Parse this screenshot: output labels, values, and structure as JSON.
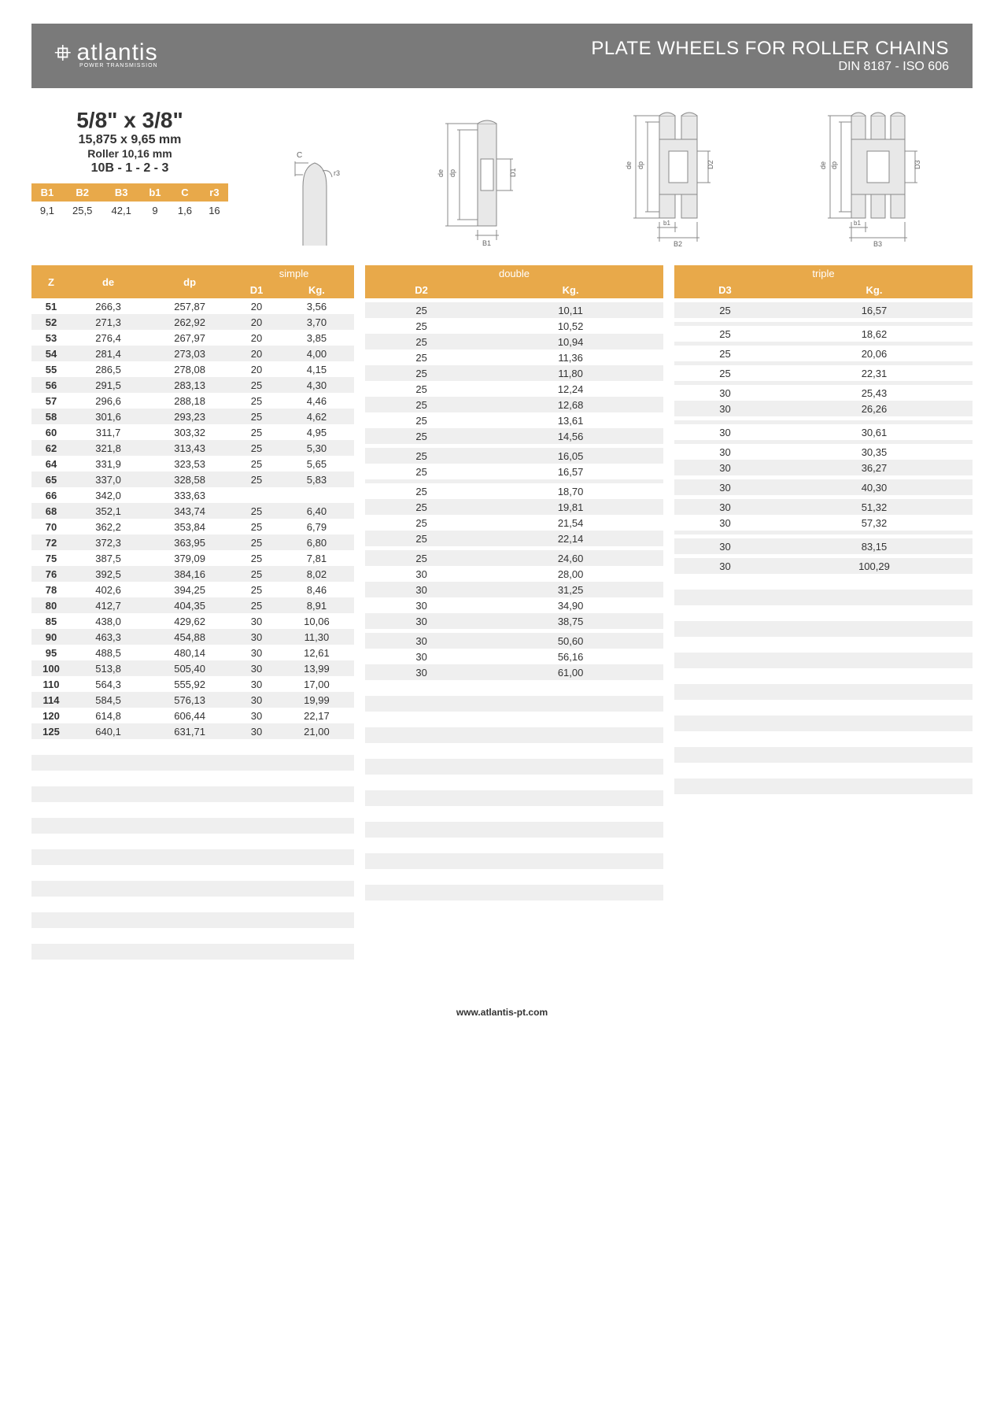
{
  "header": {
    "logo_text": "atlantis",
    "logo_sub": "POWER TRANSMISSION",
    "title": "PLATE WHEELS FOR ROLLER CHAINS",
    "subtitle": "DIN 8187 - ISO 606"
  },
  "spec": {
    "title": "5/8\" x 3/8\"",
    "sub1": "15,875 x 9,65 mm",
    "sub2": "Roller 10,16 mm",
    "sub3": "10B - 1 - 2 - 3",
    "param_headers": [
      "B1",
      "B2",
      "B3",
      "b1",
      "C",
      "r3"
    ],
    "param_values": [
      "9,1",
      "25,5",
      "42,1",
      "9",
      "1,6",
      "16"
    ]
  },
  "diagram_labels": {
    "c": "C",
    "r3": "r3",
    "de": "de",
    "dp": "dp",
    "d1": "D1",
    "d2": "D2",
    "d3": "D3",
    "b1": "B1",
    "b1l": "b1",
    "b2": "B2",
    "b3": "B3"
  },
  "table": {
    "left_headers": [
      "Z",
      "de",
      "dp"
    ],
    "groups": [
      {
        "name": "simple",
        "cols": [
          "D1",
          "Kg."
        ]
      },
      {
        "name": "double",
        "cols": [
          "D2",
          "Kg."
        ]
      },
      {
        "name": "triple",
        "cols": [
          "D3",
          "Kg."
        ]
      }
    ],
    "rows": [
      {
        "z": "51",
        "de": "266,3",
        "dp": "257,87",
        "s": [
          "20",
          "3,56"
        ],
        "d": [
          "",
          ""
        ],
        "t": [
          "",
          ""
        ]
      },
      {
        "z": "52",
        "de": "271,3",
        "dp": "262,92",
        "s": [
          "20",
          "3,70"
        ],
        "d": [
          "25",
          "10,11"
        ],
        "t": [
          "25",
          "16,57"
        ]
      },
      {
        "z": "53",
        "de": "276,4",
        "dp": "267,97",
        "s": [
          "20",
          "3,85"
        ],
        "d": [
          "25",
          "10,52"
        ],
        "t": [
          "",
          ""
        ]
      },
      {
        "z": "54",
        "de": "281,4",
        "dp": "273,03",
        "s": [
          "20",
          "4,00"
        ],
        "d": [
          "25",
          "10,94"
        ],
        "t": [
          "",
          ""
        ]
      },
      {
        "z": "55",
        "de": "286,5",
        "dp": "278,08",
        "s": [
          "20",
          "4,15"
        ],
        "d": [
          "25",
          "11,36"
        ],
        "t": [
          "25",
          "18,62"
        ]
      },
      {
        "z": "56",
        "de": "291,5",
        "dp": "283,13",
        "s": [
          "25",
          "4,30"
        ],
        "d": [
          "25",
          "11,80"
        ],
        "t": [
          "",
          ""
        ]
      },
      {
        "z": "57",
        "de": "296,6",
        "dp": "288,18",
        "s": [
          "25",
          "4,46"
        ],
        "d": [
          "25",
          "12,24"
        ],
        "t": [
          "25",
          "20,06"
        ]
      },
      {
        "z": "58",
        "de": "301,6",
        "dp": "293,23",
        "s": [
          "25",
          "4,62"
        ],
        "d": [
          "25",
          "12,68"
        ],
        "t": [
          "",
          ""
        ]
      },
      {
        "z": "60",
        "de": "311,7",
        "dp": "303,32",
        "s": [
          "25",
          "4,95"
        ],
        "d": [
          "25",
          "13,61"
        ],
        "t": [
          "25",
          "22,31"
        ]
      },
      {
        "z": "62",
        "de": "321,8",
        "dp": "313,43",
        "s": [
          "25",
          "5,30"
        ],
        "d": [
          "25",
          "14,56"
        ],
        "t": [
          "",
          ""
        ]
      },
      {
        "z": "64",
        "de": "331,9",
        "dp": "323,53",
        "s": [
          "25",
          "5,65"
        ],
        "d": [
          "",
          ""
        ],
        "t": [
          "30",
          "25,43"
        ]
      },
      {
        "z": "65",
        "de": "337,0",
        "dp": "328,58",
        "s": [
          "25",
          "5,83"
        ],
        "d": [
          "25",
          "16,05"
        ],
        "t": [
          "30",
          "26,26"
        ]
      },
      {
        "z": "66",
        "de": "342,0",
        "dp": "333,63",
        "s": [
          "",
          ""
        ],
        "d": [
          "25",
          "16,57"
        ],
        "t": [
          "",
          ""
        ]
      },
      {
        "z": "68",
        "de": "352,1",
        "dp": "343,74",
        "s": [
          "25",
          "6,40"
        ],
        "d": [
          "",
          ""
        ],
        "t": [
          "",
          ""
        ]
      },
      {
        "z": "70",
        "de": "362,2",
        "dp": "353,84",
        "s": [
          "25",
          "6,79"
        ],
        "d": [
          "25",
          "18,70"
        ],
        "t": [
          "30",
          "30,61"
        ]
      },
      {
        "z": "72",
        "de": "372,3",
        "dp": "363,95",
        "s": [
          "25",
          "6,80"
        ],
        "d": [
          "25",
          "19,81"
        ],
        "t": [
          "",
          ""
        ]
      },
      {
        "z": "75",
        "de": "387,5",
        "dp": "379,09",
        "s": [
          "25",
          "7,81"
        ],
        "d": [
          "25",
          "21,54"
        ],
        "t": [
          "30",
          "30,35"
        ]
      },
      {
        "z": "76",
        "de": "392,5",
        "dp": "384,16",
        "s": [
          "25",
          "8,02"
        ],
        "d": [
          "25",
          "22,14"
        ],
        "t": [
          "30",
          "36,27"
        ]
      },
      {
        "z": "78",
        "de": "402,6",
        "dp": "394,25",
        "s": [
          "25",
          "8,46"
        ],
        "d": [
          "",
          ""
        ],
        "t": [
          "",
          ""
        ]
      },
      {
        "z": "80",
        "de": "412,7",
        "dp": "404,35",
        "s": [
          "25",
          "8,91"
        ],
        "d": [
          "25",
          "24,60"
        ],
        "t": [
          "30",
          "40,30"
        ]
      },
      {
        "z": "85",
        "de": "438,0",
        "dp": "429,62",
        "s": [
          "30",
          "10,06"
        ],
        "d": [
          "30",
          "28,00"
        ],
        "t": [
          "",
          ""
        ]
      },
      {
        "z": "90",
        "de": "463,3",
        "dp": "454,88",
        "s": [
          "30",
          "11,30"
        ],
        "d": [
          "30",
          "31,25"
        ],
        "t": [
          "30",
          "51,32"
        ]
      },
      {
        "z": "95",
        "de": "488,5",
        "dp": "480,14",
        "s": [
          "30",
          "12,61"
        ],
        "d": [
          "30",
          "34,90"
        ],
        "t": [
          "30",
          "57,32"
        ]
      },
      {
        "z": "100",
        "de": "513,8",
        "dp": "505,40",
        "s": [
          "30",
          "13,99"
        ],
        "d": [
          "30",
          "38,75"
        ],
        "t": [
          "",
          ""
        ]
      },
      {
        "z": "110",
        "de": "564,3",
        "dp": "555,92",
        "s": [
          "30",
          "17,00"
        ],
        "d": [
          "",
          ""
        ],
        "t": [
          "",
          ""
        ]
      },
      {
        "z": "114",
        "de": "584,5",
        "dp": "576,13",
        "s": [
          "30",
          "19,99"
        ],
        "d": [
          "30",
          "50,60"
        ],
        "t": [
          "30",
          "83,15"
        ]
      },
      {
        "z": "120",
        "de": "614,8",
        "dp": "606,44",
        "s": [
          "30",
          "22,17"
        ],
        "d": [
          "30",
          "56,16"
        ],
        "t": [
          "",
          ""
        ]
      },
      {
        "z": "125",
        "de": "640,1",
        "dp": "631,71",
        "s": [
          "30",
          "21,00"
        ],
        "d": [
          "30",
          "61,00"
        ],
        "t": [
          "30",
          "100,29"
        ]
      }
    ],
    "empty_rows": 15,
    "stripe_color": "#efefef",
    "header_color": "#e8a94a"
  },
  "footer": "www.atlantis-pt.com"
}
